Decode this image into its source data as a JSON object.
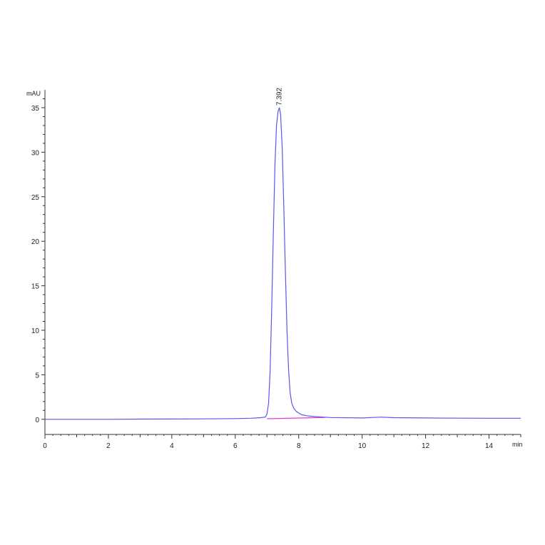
{
  "chart_data": {
    "type": "line",
    "title": "",
    "xlabel": "",
    "ylabel": "",
    "x_unit": "min",
    "y_unit": "mAU",
    "xlim": [
      0,
      15
    ],
    "ylim": [
      -1.7,
      37
    ],
    "x_ticks": [
      0,
      2,
      4,
      6,
      8,
      10,
      12,
      14
    ],
    "y_ticks": [
      0,
      5,
      10,
      15,
      20,
      25,
      30,
      35
    ],
    "x_tick_labels": [
      "0",
      "2",
      "4",
      "6",
      "8",
      "10",
      "12",
      "14"
    ],
    "y_tick_labels": [
      "0",
      "5",
      "10",
      "15",
      "20",
      "25",
      "30",
      "35"
    ],
    "grid": false,
    "series": [
      {
        "color": "#5858ee",
        "x": [
          0,
          1,
          2,
          3,
          4,
          5,
          6,
          6.5,
          6.8,
          6.95,
          7.0,
          7.05,
          7.1,
          7.15,
          7.2,
          7.25,
          7.3,
          7.35,
          7.392,
          7.43,
          7.48,
          7.53,
          7.58,
          7.63,
          7.68,
          7.73,
          7.78,
          7.85,
          7.92,
          8.0,
          8.1,
          8.25,
          8.5,
          9,
          10,
          10.6,
          11,
          12,
          13,
          14,
          15
        ],
        "y": [
          0.0,
          0.0,
          0.0,
          0.02,
          0.03,
          0.05,
          0.08,
          0.12,
          0.18,
          0.25,
          0.6,
          1.8,
          5.5,
          12.5,
          21.0,
          28.5,
          33.0,
          34.6,
          35.0,
          34.2,
          30.5,
          24.0,
          16.5,
          10.0,
          5.6,
          3.0,
          1.8,
          1.2,
          0.9,
          0.7,
          0.5,
          0.4,
          0.3,
          0.2,
          0.15,
          0.25,
          0.18,
          0.15,
          0.13,
          0.12,
          0.12
        ]
      },
      {
        "color": "#e23bd9",
        "x": [
          7.0,
          7.5,
          8.0,
          8.5,
          8.85
        ],
        "y": [
          0.06,
          0.1,
          0.14,
          0.18,
          0.2
        ]
      }
    ],
    "annotations": [
      {
        "text": "7.392",
        "x": 7.392,
        "y": 35.0
      }
    ]
  }
}
